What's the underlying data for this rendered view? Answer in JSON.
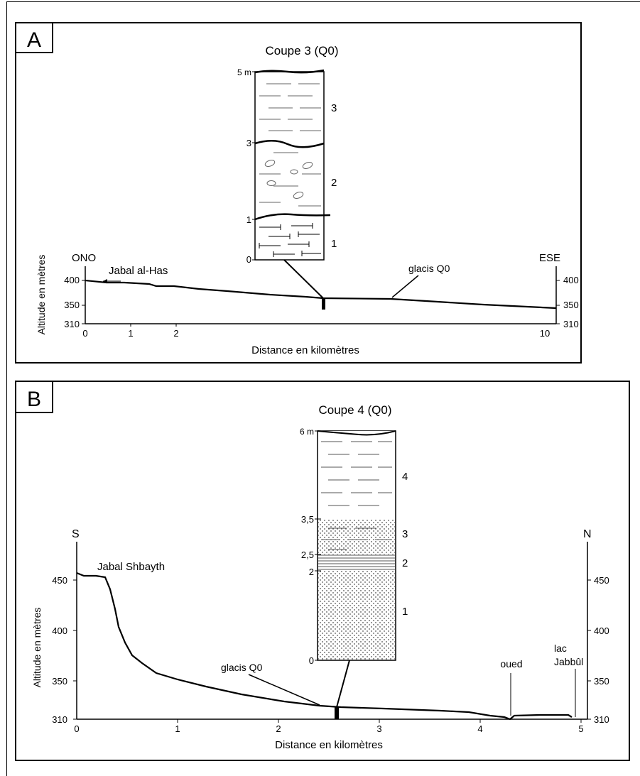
{
  "panel_a": {
    "letter": "A",
    "title": "Coupe 3 (Q0)",
    "column": {
      "depth_ticks": [
        "5 m",
        "3",
        "1",
        "0"
      ],
      "unit_labels": [
        "3",
        "2",
        "1"
      ]
    },
    "profile": {
      "left_label": "ONO",
      "right_label": "ESE",
      "place_label": "Jabal al-Has",
      "glacis_label": "glacis Q0",
      "y_label": "Altitude en mètres",
      "x_label": "Distance en kilomètres",
      "y_ticks_left": [
        "400",
        "350",
        "310"
      ],
      "y_ticks_right": [
        "400",
        "350",
        "310"
      ],
      "x_ticks": [
        "0",
        "1",
        "2",
        "10"
      ]
    }
  },
  "panel_b": {
    "letter": "B",
    "title": "Coupe 4 (Q0)",
    "column": {
      "depth_ticks": [
        "6 m",
        "3,5",
        "2,5",
        "2",
        "0"
      ],
      "unit_labels": [
        "4",
        "3",
        "2",
        "1"
      ]
    },
    "profile": {
      "left_label": "S",
      "right_label": "N",
      "place_label": "Jabal Shbayth",
      "glacis_label": "glacis Q0",
      "oued_label": "oued",
      "lake_label_1": "lac",
      "lake_label_2": "Jabbûl",
      "y_label": "Altitude en mètres",
      "x_label": "Distance en kilomètres",
      "y_ticks_left": [
        "450",
        "400",
        "350",
        "310"
      ],
      "y_ticks_right": [
        "450",
        "400",
        "350",
        "310"
      ],
      "x_ticks": [
        "0",
        "1",
        "2",
        "3",
        "4",
        "5"
      ]
    }
  }
}
